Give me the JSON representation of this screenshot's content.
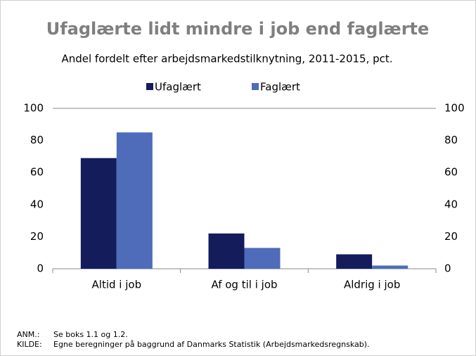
{
  "chart_data": {
    "type": "bar",
    "title": "Ufaglærte lidt mindre i job end faglærte",
    "subtitle": "Andel fordelt efter arbejdsmarkedstilknytning, 2011-2015, pct.",
    "categories": [
      "Altid i job",
      "Af og til i job",
      "Aldrig i job"
    ],
    "series": [
      {
        "name": "Ufaglært",
        "color": "#141c5c",
        "values": [
          69,
          22,
          9
        ]
      },
      {
        "name": "Faglært",
        "color": "#4e6cb9",
        "values": [
          85,
          13,
          2
        ]
      }
    ],
    "ylim": [
      0,
      100
    ],
    "yticks": [
      0,
      20,
      40,
      60,
      80,
      100
    ],
    "y2lim": [
      0,
      100
    ],
    "y2ticks": [
      0,
      20,
      40,
      60,
      80,
      100
    ],
    "grid": false,
    "legend": "top",
    "notes": [
      {
        "label": "ANM.:",
        "text": "Se boks 1.1 og 1.2."
      },
      {
        "label": "KILDE:",
        "text": "Egne beregninger på baggrund af Danmarks Statistik (Arbejdsmarkedsregnskab)."
      }
    ]
  }
}
